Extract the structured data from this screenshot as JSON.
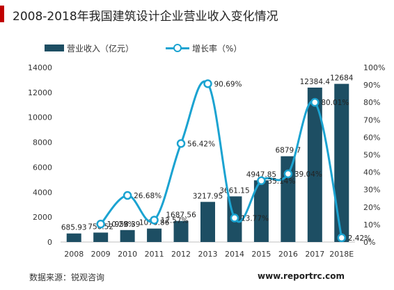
{
  "title": "2008-2018年我国建筑设计企业营业收入变化情况",
  "source": "数据来源：锐观咨询",
  "watermark": "www.reportrc.com",
  "colors": {
    "bar": "#1d4e63",
    "line": "#1ba3d1",
    "accent": "#c00000"
  },
  "chart_data": {
    "type": "bar",
    "title": "2008-2018年我国建筑设计企业营业收入变化情况",
    "categories": [
      "2008",
      "2009",
      "2010",
      "2011",
      "2012",
      "2013",
      "2014",
      "2015",
      "2016",
      "2017",
      "2018E"
    ],
    "series": [
      {
        "name": "营业收入（亿元）",
        "type": "bar",
        "axis": "left",
        "values": [
          685.93,
          756.52,
          958.39,
          1078.86,
          1687.56,
          3217.95,
          3661.15,
          4947.85,
          6879.7,
          12384.4,
          12684
        ],
        "labels": [
          "685.93",
          "756.52",
          "958.39",
          "1078.86",
          "1687.56",
          "3217.95",
          "3661.15",
          "4947.85",
          "6879.7",
          "12384.4",
          "12684"
        ]
      },
      {
        "name": "增长率（%）",
        "type": "line",
        "axis": "right",
        "values": [
          null,
          10.29,
          26.68,
          12.57,
          56.42,
          90.69,
          13.77,
          35.14,
          39.04,
          80.01,
          2.42
        ],
        "labels": [
          "",
          "10.29%",
          "26.68%",
          "12.57%",
          "56.42%",
          "90.69%",
          "13.77%",
          "35.14%",
          "39.04%",
          "80.01%",
          "2.42%"
        ]
      }
    ],
    "y_left": {
      "min": 0,
      "max": 14000,
      "ticks": [
        0,
        2000,
        4000,
        6000,
        8000,
        10000,
        12000,
        14000
      ],
      "tick_labels": [
        "0",
        "2000",
        "4000",
        "6000",
        "8000",
        "10000",
        "12000",
        "14000"
      ]
    },
    "y_right": {
      "min": 0,
      "max": 100,
      "ticks": [
        0,
        10,
        20,
        30,
        40,
        50,
        60,
        70,
        80,
        90,
        100
      ],
      "tick_labels": [
        "0%",
        "10%",
        "20%",
        "30%",
        "40%",
        "50%",
        "60%",
        "70%",
        "80%",
        "90%",
        "100%"
      ]
    },
    "grid": false,
    "legend": "top-left"
  }
}
